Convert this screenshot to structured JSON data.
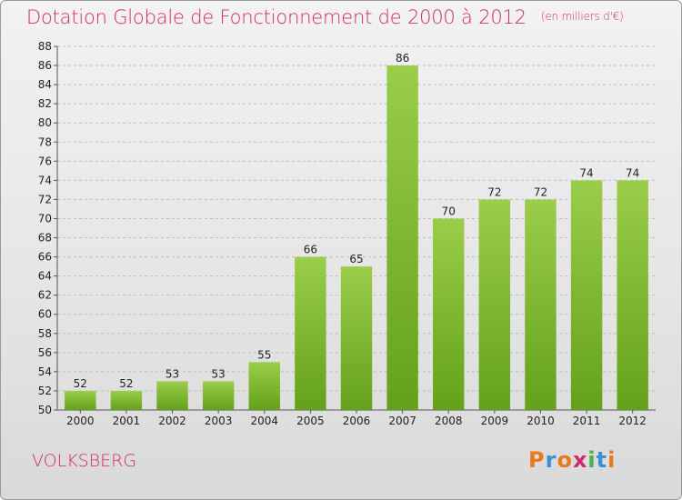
{
  "chart_data": {
    "type": "bar",
    "title": "Dotation Globale de Fonctionnement de 2000 à 2012",
    "subtitle": "(en milliers d'€)",
    "categories": [
      "2000",
      "2001",
      "2002",
      "2003",
      "2004",
      "2005",
      "2006",
      "2007",
      "2008",
      "2009",
      "2010",
      "2011",
      "2012"
    ],
    "values": [
      52,
      52,
      53,
      53,
      55,
      66,
      65,
      86,
      70,
      72,
      72,
      74,
      74
    ],
    "ylim": [
      50,
      88
    ],
    "yticks": [
      50,
      52,
      54,
      56,
      58,
      60,
      62,
      64,
      66,
      68,
      70,
      72,
      74,
      76,
      78,
      80,
      82,
      84,
      86,
      88
    ],
    "xlabel": "",
    "ylabel": "",
    "grid": true,
    "bar_color_top": "#9acd4a",
    "bar_color_bottom": "#64a11a",
    "title_color": "#d12a68"
  },
  "commune": "VOLKSBERG",
  "brand": {
    "letters": [
      "P",
      "r",
      "o",
      "x",
      "i",
      "t",
      "i"
    ],
    "colors": [
      "#e87a1e",
      "#3a8fd6",
      "#e87a1e",
      "#d12a68",
      "#4bb04a",
      "#3a8fd6",
      "#e87a1e"
    ]
  }
}
